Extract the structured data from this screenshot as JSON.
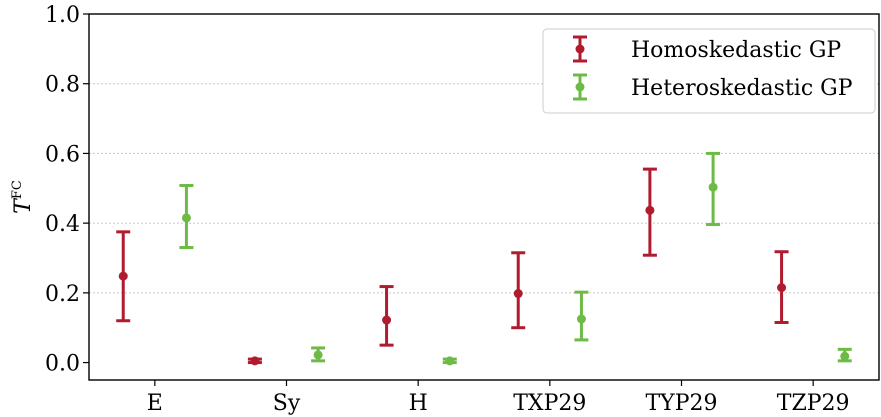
{
  "chart_data": {
    "type": "errorbar",
    "categories": [
      "E",
      "Sy",
      "H",
      "TXP29",
      "TYP29",
      "TZP29"
    ],
    "ylabel": "T",
    "ylabel_superscript": "FC",
    "ylim": [
      -0.05,
      1.0
    ],
    "yticks": [
      "0.0",
      "0.2",
      "0.4",
      "0.6",
      "0.8",
      "1.0"
    ],
    "grid": "horizontal-dotted",
    "legend_position": "top-right",
    "series": [
      {
        "name": "Homoskedastic GP",
        "color": "#b01c2e",
        "values": [
          0.248,
          0.005,
          0.122,
          0.198,
          0.437,
          0.215
        ],
        "lower": [
          0.12,
          0.0,
          0.05,
          0.1,
          0.308,
          0.115
        ],
        "upper": [
          0.375,
          0.01,
          0.218,
          0.315,
          0.555,
          0.318
        ]
      },
      {
        "name": "Heteroskedastic GP",
        "color": "#6dbb45",
        "values": [
          0.415,
          0.022,
          0.005,
          0.125,
          0.503,
          0.018
        ],
        "lower": [
          0.33,
          0.005,
          0.0,
          0.065,
          0.396,
          0.005
        ],
        "upper": [
          0.508,
          0.042,
          0.01,
          0.202,
          0.6,
          0.038
        ]
      }
    ]
  }
}
